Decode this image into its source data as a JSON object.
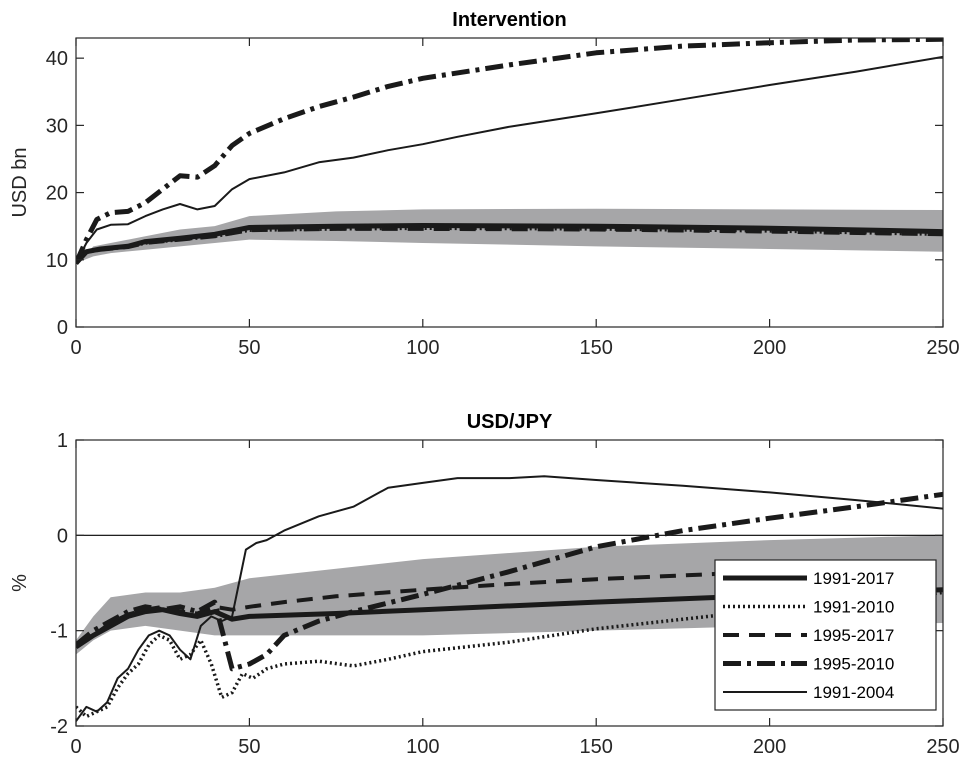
{
  "chart_data": [
    {
      "type": "line",
      "title": "Intervention",
      "xlabel": "",
      "ylabel": "USD bn",
      "xlim": [
        0,
        250
      ],
      "ylim": [
        0,
        43
      ],
      "x_ticks": [
        0,
        50,
        100,
        150,
        200,
        250
      ],
      "y_ticks": [
        0,
        10,
        20,
        30,
        40
      ],
      "band": {
        "x": [
          0,
          5,
          10,
          20,
          30,
          40,
          50,
          75,
          100,
          150,
          200,
          250
        ],
        "lower": [
          9.5,
          10.5,
          11,
          11.5,
          12,
          12.5,
          13,
          12.8,
          12.5,
          12,
          11.6,
          11.2
        ],
        "upper": [
          9.5,
          12,
          12.5,
          13.5,
          14.5,
          15,
          16.5,
          17.2,
          17.5,
          17.6,
          17.5,
          17.4
        ]
      },
      "series": [
        {
          "name": "1991-2017",
          "style": "thick-solid",
          "x": [
            0,
            3,
            7,
            15,
            20,
            30,
            40,
            50,
            75,
            100,
            150,
            200,
            250
          ],
          "y": [
            9.5,
            11.2,
            11.6,
            12,
            12.7,
            13.2,
            13.8,
            14.8,
            15,
            15.1,
            15,
            14.7,
            14.2
          ]
        },
        {
          "name": "1991-2010",
          "style": "dotted",
          "x": [
            0,
            3,
            7,
            15,
            20,
            30,
            40,
            50,
            75,
            100,
            150,
            200,
            250
          ],
          "y": [
            9.5,
            11.1,
            11.5,
            11.9,
            12.5,
            13,
            13.5,
            14.4,
            14.6,
            14.7,
            14.6,
            14.3,
            13.8
          ]
        },
        {
          "name": "1995-2017",
          "style": "dashed",
          "x": [
            0,
            3,
            7,
            15,
            20,
            30,
            40,
            50,
            75,
            100,
            150,
            200,
            250
          ],
          "y": [
            9.5,
            11.1,
            11.5,
            11.9,
            12.5,
            13,
            13.5,
            14.4,
            14.6,
            14.6,
            14.5,
            14.2,
            13.8
          ]
        },
        {
          "name": "1995-2010",
          "style": "dashdot",
          "x": [
            0,
            3,
            6,
            10,
            15,
            20,
            25,
            30,
            35,
            40,
            45,
            50,
            60,
            70,
            80,
            90,
            100,
            125,
            150,
            175,
            200,
            225,
            250
          ],
          "y": [
            9.5,
            13,
            16,
            17,
            17.2,
            18.5,
            20.5,
            22.5,
            22.3,
            24,
            27,
            28.8,
            31,
            32.8,
            34.2,
            35.8,
            37,
            39,
            40.8,
            41.8,
            42.3,
            42.7,
            42.8
          ]
        },
        {
          "name": "1991-2004",
          "style": "thin-solid",
          "x": [
            0,
            3,
            6,
            10,
            15,
            20,
            25,
            30,
            35,
            40,
            45,
            50,
            60,
            70,
            80,
            90,
            100,
            110,
            125,
            150,
            175,
            200,
            225,
            250
          ],
          "y": [
            9.5,
            12.5,
            14.5,
            15.2,
            15.3,
            16.5,
            17.5,
            18.3,
            17.5,
            18,
            20.5,
            22,
            23,
            24.5,
            25.2,
            26.3,
            27.2,
            28.3,
            29.8,
            31.8,
            33.9,
            36,
            38,
            40.2
          ]
        }
      ]
    },
    {
      "type": "line",
      "title": "USD/JPY",
      "xlabel": "",
      "ylabel": "%",
      "xlim": [
        0,
        250
      ],
      "ylim": [
        -2,
        1
      ],
      "x_ticks": [
        0,
        50,
        100,
        150,
        200,
        250
      ],
      "y_ticks": [
        -2,
        -1,
        0,
        1
      ],
      "zero_line": true,
      "legend": {
        "position": "bottom-right",
        "entries": [
          "1991-2017",
          "1991-2010",
          "1995-2017",
          "1995-2010",
          "1991-2004"
        ]
      },
      "band": {
        "x": [
          0,
          5,
          10,
          20,
          30,
          40,
          50,
          75,
          100,
          150,
          200,
          250
        ],
        "lower": [
          -1.25,
          -1.1,
          -1.0,
          -0.95,
          -1.0,
          -1.05,
          -1.05,
          -1.05,
          -1.05,
          -1.0,
          -0.95,
          -0.92
        ],
        "upper": [
          -1.1,
          -0.85,
          -0.65,
          -0.6,
          -0.6,
          -0.55,
          -0.45,
          -0.35,
          -0.25,
          -0.12,
          -0.05,
          0.0
        ]
      },
      "series": [
        {
          "name": "1991-2017",
          "style": "thick-solid",
          "x": [
            0,
            5,
            10,
            15,
            20,
            25,
            30,
            35,
            40,
            45,
            50,
            75,
            100,
            150,
            200,
            250
          ],
          "y": [
            -1.17,
            -1.05,
            -0.95,
            -0.85,
            -0.8,
            -0.78,
            -0.82,
            -0.85,
            -0.8,
            -0.88,
            -0.85,
            -0.82,
            -0.78,
            -0.7,
            -0.63,
            -0.57
          ]
        },
        {
          "name": "1991-2010",
          "style": "dotted",
          "x": [
            0,
            3,
            6,
            9,
            12,
            15,
            18,
            21,
            24,
            27,
            30,
            33,
            36,
            39,
            42,
            45,
            48,
            51,
            55,
            60,
            70,
            80,
            90,
            100,
            125,
            150,
            175,
            200,
            225,
            250
          ],
          "y": [
            -1.8,
            -1.9,
            -1.85,
            -1.8,
            -1.6,
            -1.45,
            -1.35,
            -1.15,
            -1.05,
            -1.1,
            -1.3,
            -1.25,
            -1.1,
            -1.35,
            -1.7,
            -1.65,
            -1.45,
            -1.5,
            -1.4,
            -1.35,
            -1.32,
            -1.37,
            -1.3,
            -1.22,
            -1.12,
            -0.98,
            -0.88,
            -0.78,
            -0.7,
            -0.6
          ]
        },
        {
          "name": "1995-2017",
          "style": "dashed",
          "x": [
            0,
            5,
            10,
            15,
            20,
            25,
            30,
            35,
            40,
            45,
            50,
            60,
            75,
            100,
            125,
            150,
            175,
            200,
            225,
            250
          ],
          "y": [
            -1.17,
            -1.05,
            -0.92,
            -0.83,
            -0.78,
            -0.75,
            -0.8,
            -0.82,
            -0.75,
            -0.78,
            -0.75,
            -0.7,
            -0.64,
            -0.57,
            -0.51,
            -0.46,
            -0.42,
            -0.38,
            -0.35,
            -0.32
          ]
        },
        {
          "name": "1995-2010",
          "style": "dashdot",
          "x": [
            0,
            5,
            10,
            15,
            20,
            25,
            30,
            35,
            40,
            45,
            50,
            55,
            60,
            70,
            80,
            100,
            125,
            150,
            175,
            200,
            225,
            250
          ],
          "y": [
            -1.15,
            -1.0,
            -0.9,
            -0.8,
            -0.75,
            -0.78,
            -0.75,
            -0.8,
            -0.7,
            -1.4,
            -1.35,
            -1.25,
            -1.05,
            -0.9,
            -0.8,
            -0.62,
            -0.38,
            -0.12,
            0.05,
            0.18,
            0.3,
            0.43
          ]
        },
        {
          "name": "1991-2004",
          "style": "thin-solid",
          "x": [
            0,
            3,
            6,
            9,
            12,
            15,
            18,
            21,
            24,
            27,
            30,
            33,
            36,
            39,
            42,
            45,
            47,
            49,
            52,
            55,
            60,
            70,
            80,
            90,
            100,
            110,
            125,
            135,
            150,
            175,
            200,
            225,
            250
          ],
          "y": [
            -1.95,
            -1.8,
            -1.85,
            -1.75,
            -1.5,
            -1.4,
            -1.2,
            -1.05,
            -1.0,
            -1.05,
            -1.2,
            -1.3,
            -0.95,
            -0.85,
            -0.9,
            -0.85,
            -0.5,
            -0.15,
            -0.08,
            -0.05,
            0.05,
            0.2,
            0.3,
            0.5,
            0.55,
            0.6,
            0.6,
            0.62,
            0.58,
            0.52,
            0.45,
            0.37,
            0.28
          ]
        }
      ]
    }
  ]
}
